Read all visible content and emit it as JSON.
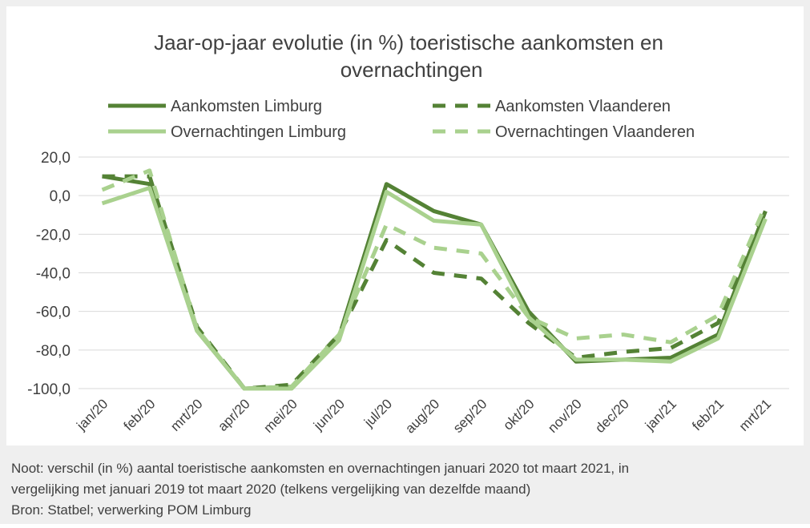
{
  "chart_data": {
    "type": "line",
    "title": "Jaar-op-jaar evolutie (in %) toeristische aankomsten en overnachtingen",
    "categories": [
      "jan/20",
      "feb/20",
      "mrt/20",
      "apr/20",
      "mei/20",
      "jun/20",
      "jul/20",
      "aug/20",
      "sep/20",
      "okt/20",
      "nov/20",
      "dec/20",
      "jan/21",
      "feb/21",
      "mrt/21"
    ],
    "series": [
      {
        "name": "Aankomsten Limburg",
        "color": "#548235",
        "dash": false,
        "values": [
          10,
          6,
          -70,
          -100,
          -99,
          -73,
          6,
          -8,
          -15,
          -60,
          -86,
          -85,
          -84,
          -72,
          -8
        ]
      },
      {
        "name": "Aankomsten Vlaanderen",
        "color": "#548235",
        "dash": true,
        "values": [
          10,
          10,
          -68,
          -100,
          -98,
          -72,
          -23,
          -40,
          -43,
          -66,
          -84,
          -81,
          -79,
          -66,
          -7
        ]
      },
      {
        "name": "Overnachtingen Limburg",
        "color": "#a9d18e",
        "dash": false,
        "values": [
          -4,
          4,
          -70,
          -100,
          -100,
          -75,
          2,
          -13,
          -15,
          -63,
          -85,
          -85,
          -86,
          -74,
          -12
        ]
      },
      {
        "name": "Overnachtingen Vlaanderen",
        "color": "#a9d18e",
        "dash": true,
        "values": [
          3,
          13,
          -69,
          -100,
          -99,
          -72,
          -15,
          -27,
          -30,
          -63,
          -74,
          -72,
          -76,
          -62,
          -5
        ]
      }
    ],
    "ylim": [
      -100,
      20
    ],
    "yticks": [
      {
        "value": 20,
        "label": "20,0"
      },
      {
        "value": 0,
        "label": "0,0"
      },
      {
        "value": -20,
        "label": "-20,0"
      },
      {
        "value": -40,
        "label": "-40,0"
      },
      {
        "value": -60,
        "label": "-60,0"
      },
      {
        "value": -80,
        "label": "-80,0"
      },
      {
        "value": -100,
        "label": "-100,0"
      }
    ],
    "grid": true,
    "notes": [
      "Noot: verschil (in %) aantal toeristische aankomsten en overnachtingen januari 2020 tot maart 2021, in",
      "vergelijking met januari 2019 tot maart 2020 (telkens vergelijking van dezelfde maand)",
      "Bron: Statbel; verwerking POM Limburg"
    ]
  }
}
